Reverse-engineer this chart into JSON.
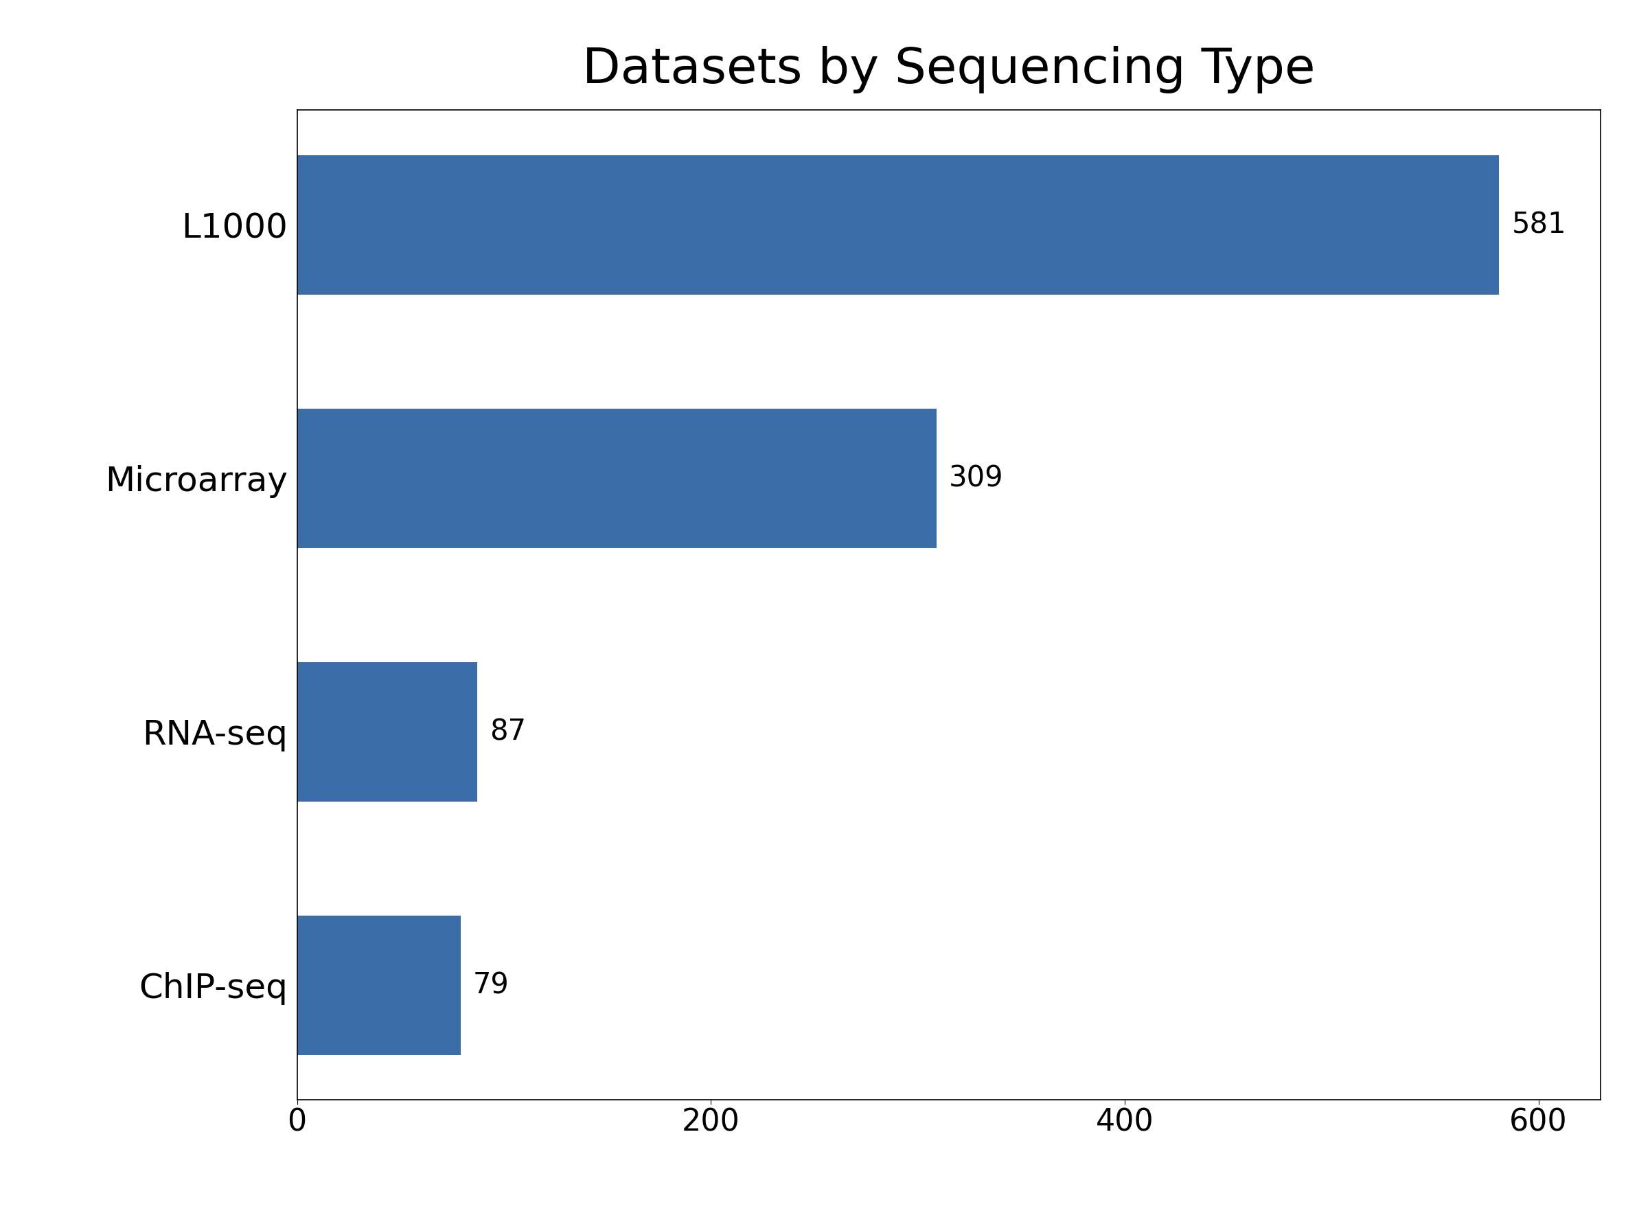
{
  "title": "Datasets by Sequencing Type",
  "categories": [
    "ChIP-seq",
    "RNA-seq",
    "Microarray",
    "L1000"
  ],
  "values": [
    79,
    87,
    309,
    581
  ],
  "bar_color": "#3B6EA8",
  "xlim": [
    0,
    630
  ],
  "xticks": [
    0,
    200,
    400,
    600
  ],
  "title_fontsize": 52,
  "tick_fontsize": 32,
  "label_fontsize": 36,
  "annotation_fontsize": 30,
  "background_color": "#ffffff",
  "bar_height": 0.55
}
